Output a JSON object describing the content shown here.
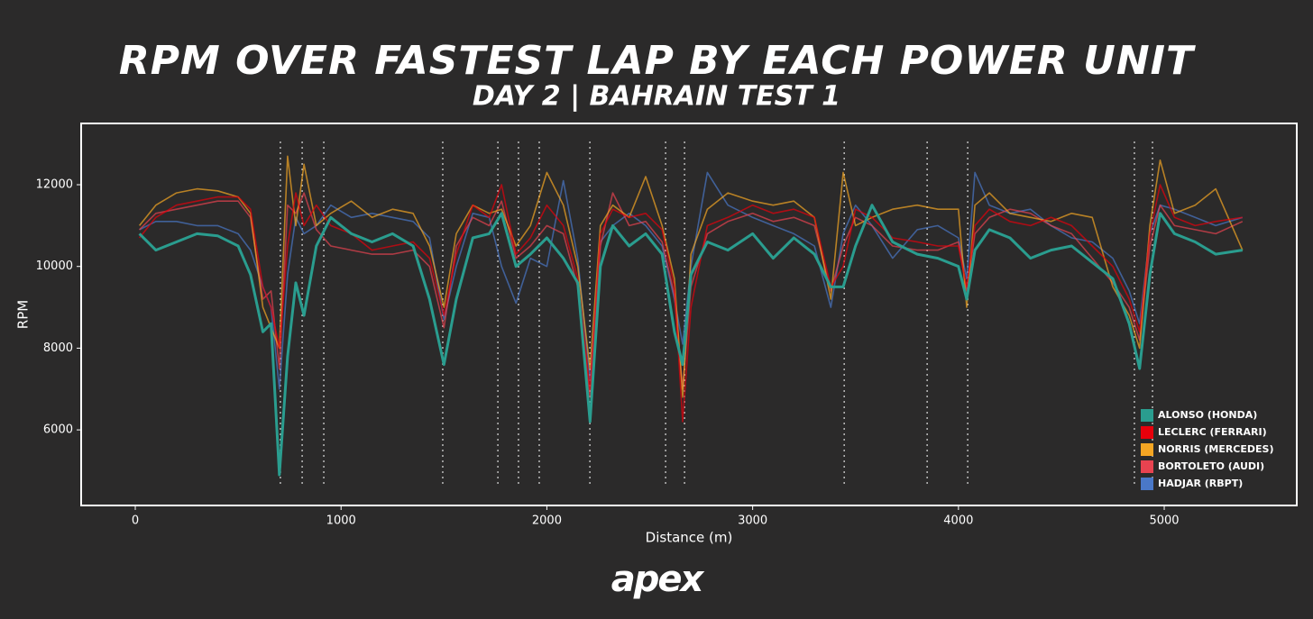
{
  "chart_data": {
    "type": "line",
    "title": "RPM OVER FASTEST LAP BY EACH POWER UNIT",
    "subtitle": "DAY 2 | BAHRAIN TEST 1",
    "x_label": "Distance (m)",
    "y_label": "RPM",
    "logo": "apex",
    "xlim": [
      -263,
      5644
    ],
    "ylim": [
      4150,
      13500
    ],
    "xticks": [
      0,
      1000,
      2000,
      3000,
      4000,
      5000
    ],
    "yticks": [
      6000,
      8000,
      10000,
      12000
    ],
    "grid": false,
    "legend": "lower right",
    "vlines": [
      705,
      811,
      916,
      1494,
      1762,
      1862,
      1963,
      2209,
      2577,
      2669,
      3445,
      3848,
      4045,
      4855,
      4943
    ],
    "x": [
      20,
      100,
      200,
      300,
      400,
      500,
      560,
      620,
      660,
      700,
      740,
      780,
      820,
      880,
      950,
      1050,
      1150,
      1250,
      1350,
      1430,
      1500,
      1560,
      1640,
      1720,
      1780,
      1850,
      1920,
      2000,
      2080,
      2150,
      2210,
      2260,
      2320,
      2400,
      2480,
      2560,
      2620,
      2660,
      2700,
      2780,
      2880,
      3000,
      3100,
      3200,
      3300,
      3380,
      3440,
      3500,
      3580,
      3680,
      3800,
      3900,
      4000,
      4040,
      4080,
      4150,
      4250,
      4350,
      4450,
      4550,
      4650,
      4750,
      4830,
      4880,
      4930,
      4980,
      5050,
      5150,
      5250,
      5380
    ],
    "series": [
      {
        "name": "ALONSO (HONDA)",
        "color": "#2a9d8f",
        "values": [
          10800,
          10400,
          10600,
          10800,
          10750,
          10500,
          9800,
          8400,
          8600,
          4900,
          7800,
          9600,
          8800,
          10500,
          11200,
          10800,
          10600,
          10800,
          10500,
          9200,
          7600,
          9200,
          10700,
          10800,
          11300,
          10000,
          10300,
          10700,
          10200,
          9600,
          6200,
          10000,
          11000,
          10500,
          10800,
          10300,
          8400,
          7600,
          9800,
          10600,
          10400,
          10800,
          10200,
          10700,
          10300,
          9500,
          9500,
          10500,
          11500,
          10600,
          10300,
          10200,
          10000,
          9200,
          10400,
          10900,
          10700,
          10200,
          10400,
          10500,
          10100,
          9700,
          8600,
          7500,
          9800,
          11300,
          10800,
          10600,
          10300,
          10400
        ]
      },
      {
        "name": "LECLERC (FERRARI)",
        "color": "#e8000b",
        "values": [
          10700,
          11200,
          11500,
          11600,
          11700,
          11700,
          11400,
          9500,
          9000,
          8000,
          10500,
          11800,
          11000,
          11500,
          11000,
          10800,
          10400,
          10500,
          10600,
          10200,
          8800,
          10300,
          11500,
          11200,
          12000,
          10300,
          10700,
          11500,
          11000,
          9700,
          7000,
          10800,
          11400,
          11200,
          11300,
          10900,
          9500,
          6200,
          9000,
          11000,
          11200,
          11500,
          11300,
          11400,
          11200,
          9500,
          10000,
          11400,
          11200,
          10700,
          10600,
          10500,
          10500,
          9500,
          11000,
          11400,
          11100,
          11000,
          11200,
          11000,
          10500,
          10000,
          9200,
          8400,
          10800,
          12000,
          11200,
          11000,
          11100,
          11200
        ]
      },
      {
        "name": "NORRIS (MERCEDES)",
        "color": "#f5a623",
        "values": [
          11000,
          11500,
          11800,
          11900,
          11850,
          11700,
          11300,
          9000,
          8500,
          8000,
          12700,
          11000,
          12500,
          11000,
          11300,
          11600,
          11200,
          11400,
          11300,
          10500,
          9000,
          10800,
          11500,
          11300,
          11400,
          10500,
          11000,
          12300,
          11500,
          10000,
          7500,
          11000,
          11500,
          11200,
          12200,
          11000,
          9700,
          6800,
          10300,
          11400,
          11800,
          11600,
          11500,
          11600,
          11200,
          9200,
          12300,
          11000,
          11200,
          11400,
          11500,
          11400,
          11400,
          9000,
          11500,
          11800,
          11300,
          11200,
          11100,
          11300,
          11200,
          9500,
          8800,
          8000,
          11000,
          12600,
          11300,
          11500,
          11900,
          10400
        ]
      },
      {
        "name": "BORTOLETO (AUDI)",
        "color": "#e84350",
        "values": [
          10900,
          11300,
          11400,
          11500,
          11600,
          11600,
          11200,
          9200,
          9400,
          7500,
          11500,
          11300,
          11800,
          10900,
          10500,
          10400,
          10300,
          10300,
          10400,
          10000,
          8500,
          10500,
          11200,
          11000,
          11600,
          10200,
          10500,
          11000,
          10800,
          9500,
          6800,
          10500,
          11800,
          11000,
          11100,
          10600,
          9300,
          7000,
          9500,
          10800,
          11100,
          11300,
          11100,
          11200,
          11000,
          9400,
          10500,
          11200,
          11000,
          10500,
          10400,
          10400,
          10600,
          9400,
          10800,
          11200,
          11400,
          11300,
          11000,
          10800,
          10200,
          9600,
          9000,
          8200,
          10500,
          11500,
          11000,
          10900,
          10800,
          11100
        ]
      },
      {
        "name": "HADJAR (RBPT)",
        "color": "#4a78c8",
        "values": [
          10900,
          11100,
          11100,
          11000,
          11000,
          10800,
          10400,
          9500,
          9000,
          7000,
          9800,
          11200,
          10800,
          11000,
          11500,
          11200,
          11300,
          11200,
          11100,
          10700,
          8700,
          10000,
          11300,
          11200,
          10000,
          9100,
          10200,
          10000,
          12100,
          10200,
          7200,
          10600,
          11000,
          11300,
          11000,
          10500,
          9200,
          8100,
          10000,
          12300,
          11500,
          11200,
          11000,
          10800,
          10500,
          9000,
          10800,
          11500,
          11000,
          10200,
          10900,
          11000,
          10700,
          9700,
          12300,
          11500,
          11300,
          11400,
          11000,
          10700,
          10600,
          10200,
          9400,
          8600,
          10800,
          11500,
          11400,
          11200,
          11000,
          11200
        ]
      }
    ]
  }
}
